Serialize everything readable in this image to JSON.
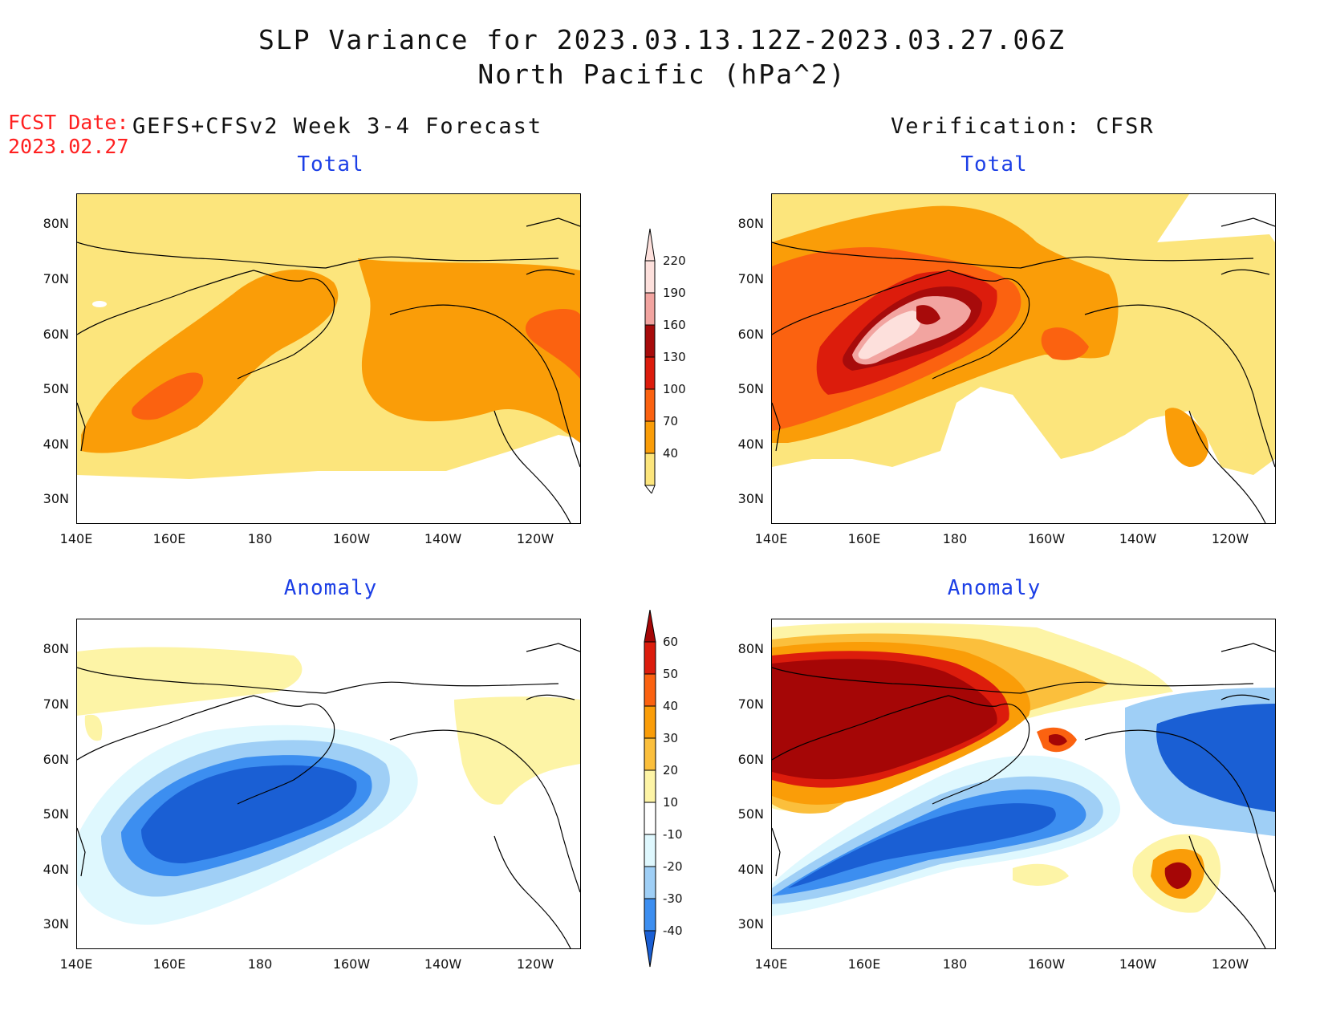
{
  "header": {
    "title_line1": "SLP Variance for 2023.03.13.12Z-2023.03.27.06Z",
    "title_line2": "North Pacific (hPa^2)",
    "fcst_date_label": "FCST Date:",
    "fcst_date": "2023.02.27",
    "left_heading": "GEFS+CFSv2 Week 3-4 Forecast",
    "right_heading": "Verification: CFSR"
  },
  "panels": {
    "fcst_total_title": "Total",
    "verif_total_title": "Total",
    "fcst_anom_title": "Anomaly",
    "verif_anom_title": "Anomaly"
  },
  "axes": {
    "lat_labels": [
      "80N",
      "70N",
      "60N",
      "50N",
      "40N",
      "30N"
    ],
    "lon_labels": [
      "140E",
      "160E",
      "180",
      "160W",
      "140W",
      "120W"
    ]
  },
  "colorbar_total": {
    "levels": [
      "220",
      "190",
      "160",
      "130",
      "100",
      "70",
      "40"
    ],
    "colors": [
      "#fde0dc",
      "#f2a4a0",
      "#a70b0b",
      "#dc1c0c",
      "#fb6210",
      "#fa9d08",
      "#fce57c",
      "#ffffff"
    ]
  },
  "colorbar_anom": {
    "levels": [
      "60",
      "50",
      "40",
      "30",
      "20",
      "10",
      "-10",
      "-20",
      "-30",
      "-40"
    ],
    "colors": [
      "#a50606",
      "#dc1c0c",
      "#fb6210",
      "#fa9d08",
      "#fbbf3c",
      "#fdf4a6",
      "#ffffff",
      "#dff8fe",
      "#9fcff6",
      "#3c8ef0",
      "#1a5fd4"
    ]
  },
  "colors": {
    "title_blue": "#1c3fe6",
    "fcst_red": "#ff2020"
  }
}
